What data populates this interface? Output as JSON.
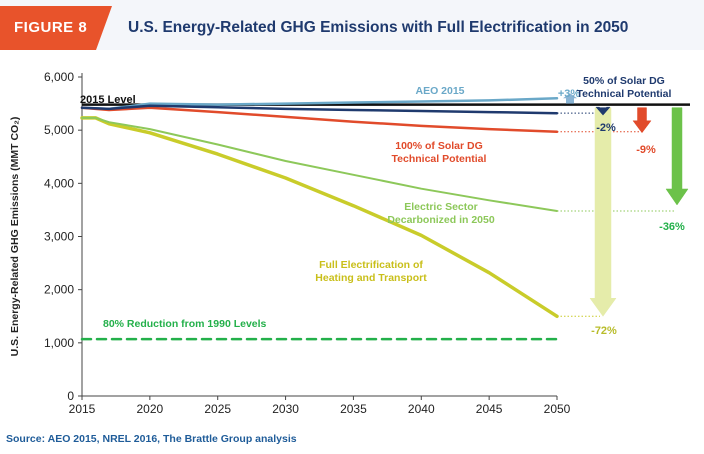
{
  "header": {
    "figure_label": "FIGURE 8",
    "title": "U.S. Energy-Related GHG Emissions with Full Electrification in 2050"
  },
  "source": "Source: AEO 2015, NREL 2016, The Brattle Group analysis",
  "colors": {
    "tab": "#e8532b",
    "title": "#1f3a6e",
    "aeo": "#6aa8c8",
    "solar50": "#1f3a6e",
    "solar100": "#e14b2b",
    "electric": "#8dc85a",
    "fullelec": "#c9cc2a",
    "reduction80": "#23b04a"
  },
  "chart_data": {
    "type": "line",
    "ylabel": "U.S. Energy-Related GHG Emissions (MMT CO₂)",
    "xlabel": "",
    "xlim": [
      2015,
      2050
    ],
    "ylim": [
      0,
      6000
    ],
    "x_ticks": [
      2015,
      2020,
      2025,
      2030,
      2035,
      2040,
      2045,
      2050
    ],
    "y_ticks": [
      0,
      1000,
      2000,
      3000,
      4000,
      5000,
      6000
    ],
    "y_tick_labels": [
      "0",
      "1,000",
      "2,000",
      "3,000",
      "4,000",
      "5,000",
      "6,000"
    ],
    "level_2015": 5480,
    "level_2015_label": "2015 Level",
    "series": [
      {
        "name": "AEO 2015",
        "label": "AEO 2015",
        "color": "#6aa8c8",
        "x": [
          2015,
          2017,
          2020,
          2025,
          2030,
          2035,
          2040,
          2045,
          2050
        ],
        "y": [
          5420,
          5400,
          5500,
          5480,
          5500,
          5520,
          5540,
          5560,
          5600
        ]
      },
      {
        "name": "50% of Solar DG Technical Potential",
        "label": "50% of Solar DG Technical Potential",
        "color": "#1f3a6e",
        "x": [
          2015,
          2017,
          2020,
          2025,
          2030,
          2035,
          2040,
          2045,
          2050
        ],
        "y": [
          5420,
          5400,
          5460,
          5430,
          5400,
          5380,
          5360,
          5340,
          5320
        ]
      },
      {
        "name": "100% of Solar DG Technical Potential",
        "label": "100% of Solar DG Technical Potential",
        "color": "#e14b2b",
        "x": [
          2015,
          2017,
          2020,
          2025,
          2030,
          2035,
          2040,
          2045,
          2050
        ],
        "y": [
          5420,
          5380,
          5420,
          5340,
          5250,
          5160,
          5080,
          5020,
          4970
        ]
      },
      {
        "name": "Electric Sector Decarbonized in 2050",
        "label": "Electric Sector Decarbonized in 2050",
        "color": "#8dc85a",
        "x": [
          2015,
          2016,
          2017,
          2020,
          2025,
          2030,
          2035,
          2040,
          2045,
          2050
        ],
        "y": [
          5230,
          5230,
          5150,
          5020,
          4730,
          4420,
          4160,
          3900,
          3680,
          3480
        ]
      },
      {
        "name": "Full Electrification of Heating and Transport",
        "label": "Full Electrification of Heating and Transport",
        "color": "#c9cc2a",
        "x": [
          2015,
          2016,
          2017,
          2020,
          2025,
          2030,
          2035,
          2040,
          2045,
          2050
        ],
        "y": [
          5230,
          5230,
          5120,
          4950,
          4550,
          4100,
          3580,
          3020,
          2320,
          1500
        ]
      },
      {
        "name": "80% Reduction from 1990 Levels",
        "label": "80% Reduction from 1990 Levels",
        "color": "#23b04a",
        "dashed": true,
        "x": [
          2015,
          2050
        ],
        "y": [
          1070,
          1070
        ]
      }
    ],
    "changes": [
      {
        "label": "+3%",
        "series": "AEO 2015",
        "value": 5600,
        "color": "#6aa8c8"
      },
      {
        "label": "-2%",
        "series": "50% of Solar DG Technical Potential",
        "value": 5320,
        "color": "#1f3a6e"
      },
      {
        "label": "-9%",
        "series": "100% of Solar DG Technical Potential",
        "value": 4970,
        "color": "#e14b2b"
      },
      {
        "label": "-36%",
        "series": "Electric Sector Decarbonized in 2050",
        "value": 3480,
        "color": "#23b04a"
      },
      {
        "label": "-72%",
        "series": "Full Electrification of Heating and Transport",
        "value": 1500,
        "color": "#b8bc2a"
      }
    ],
    "annotations": {
      "aeo": "AEO 2015",
      "solar50_line1": "50% of Solar DG",
      "solar50_line2": "Technical Potential",
      "solar100_line1": "100% of Solar DG",
      "solar100_line2": "Technical Potential",
      "electric_line1": "Electric Sector",
      "electric_line2": "Decarbonized in 2050",
      "fullelec_line1": "Full Electrification of",
      "fullelec_line2": "Heating and Transport",
      "reduction80": "80% Reduction from 1990 Levels"
    }
  }
}
